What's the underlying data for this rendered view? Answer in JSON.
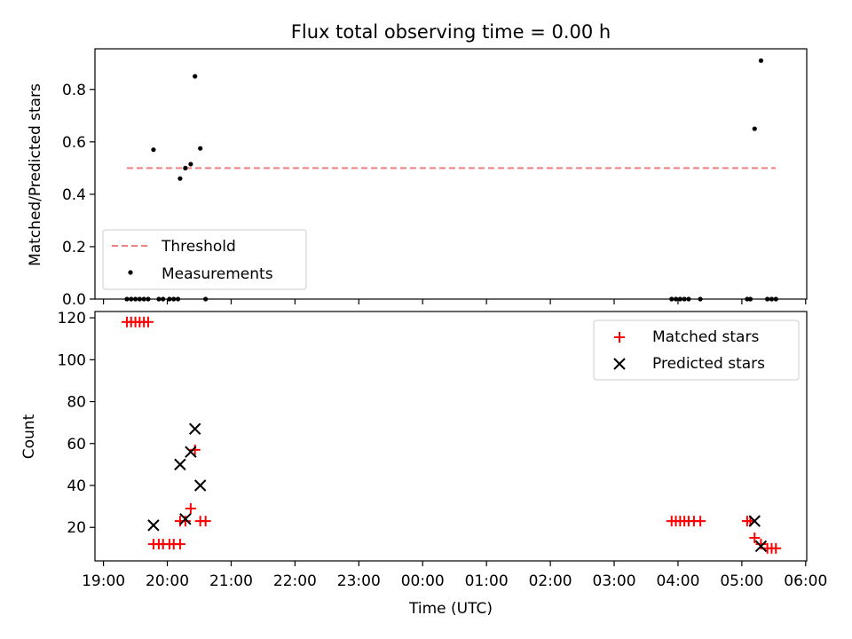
{
  "chart_data": [
    {
      "type": "scatter",
      "title": "Flux total observing time = 0.00 h",
      "ylabel": "Matched/Predicted stars",
      "xlim": [
        "18:52",
        "06:01"
      ],
      "ylim": [
        0,
        0.955
      ],
      "yticks": [
        "0.0",
        "0.2",
        "0.4",
        "0.6",
        "0.8"
      ],
      "legend_placement": "lower-left",
      "threshold": {
        "name": "Threshold",
        "color": "#f08080",
        "value": 0.5,
        "x_range": [
          "19:22",
          "05:32"
        ]
      },
      "series": [
        {
          "name": "Measurements",
          "color": "#000000",
          "points": [
            [
              "19:22",
              0.0
            ],
            [
              "19:26",
              0.0
            ],
            [
              "19:30",
              0.0
            ],
            [
              "19:34",
              0.0
            ],
            [
              "19:38",
              0.0
            ],
            [
              "19:42",
              0.0
            ],
            [
              "19:47",
              0.57
            ],
            [
              "19:52",
              0.0
            ],
            [
              "19:56",
              0.0
            ],
            [
              "20:02",
              0.0
            ],
            [
              "20:06",
              0.0
            ],
            [
              "20:10",
              0.0
            ],
            [
              "20:12",
              0.46
            ],
            [
              "20:17",
              0.5
            ],
            [
              "20:22",
              0.515
            ],
            [
              "20:26",
              0.85
            ],
            [
              "20:31",
              0.575
            ],
            [
              "20:36",
              0.0
            ],
            [
              "03:54",
              0.0
            ],
            [
              "03:58",
              0.0
            ],
            [
              "04:02",
              0.0
            ],
            [
              "04:06",
              0.0
            ],
            [
              "04:10",
              0.0
            ],
            [
              "04:21",
              0.0
            ],
            [
              "05:05",
              0.0
            ],
            [
              "05:08",
              0.0
            ],
            [
              "05:12",
              0.65
            ],
            [
              "05:18",
              0.91
            ],
            [
              "05:24",
              0.0
            ],
            [
              "05:28",
              0.0
            ],
            [
              "05:32",
              0.0
            ]
          ]
        }
      ]
    },
    {
      "type": "scatter",
      "xlabel": "Time (UTC)",
      "ylabel": "Count",
      "xlim": [
        "18:52",
        "06:01"
      ],
      "ylim": [
        4,
        123
      ],
      "xticks": [
        "19:00",
        "20:00",
        "21:00",
        "22:00",
        "23:00",
        "00:00",
        "01:00",
        "02:00",
        "03:00",
        "04:00",
        "05:00",
        "06:00"
      ],
      "yticks": [
        "20",
        "40",
        "60",
        "80",
        "100",
        "120"
      ],
      "legend_placement": "upper-right",
      "series": [
        {
          "name": "Matched stars",
          "color": "#ff0000",
          "marker": "plus",
          "points": [
            [
              "19:22",
              118
            ],
            [
              "19:26",
              118
            ],
            [
              "19:30",
              118
            ],
            [
              "19:34",
              118
            ],
            [
              "19:38",
              118
            ],
            [
              "19:42",
              118
            ],
            [
              "19:47",
              12
            ],
            [
              "19:52",
              12
            ],
            [
              "19:56",
              12
            ],
            [
              "20:02",
              12
            ],
            [
              "20:06",
              12
            ],
            [
              "20:12",
              12
            ],
            [
              "20:12",
              23
            ],
            [
              "20:17",
              23
            ],
            [
              "20:22",
              29
            ],
            [
              "20:26",
              57
            ],
            [
              "20:31",
              23
            ],
            [
              "20:36",
              23
            ],
            [
              "03:54",
              23
            ],
            [
              "03:58",
              23
            ],
            [
              "04:02",
              23
            ],
            [
              "04:06",
              23
            ],
            [
              "04:10",
              23
            ],
            [
              "04:15",
              23
            ],
            [
              "04:21",
              23
            ],
            [
              "05:05",
              23
            ],
            [
              "05:08",
              23
            ],
            [
              "05:12",
              15
            ],
            [
              "05:18",
              12
            ],
            [
              "05:24",
              10
            ],
            [
              "05:28",
              10
            ],
            [
              "05:32",
              10
            ]
          ]
        },
        {
          "name": "Predicted stars",
          "color": "#000000",
          "marker": "x",
          "points": [
            [
              "19:47",
              21
            ],
            [
              "20:12",
              50
            ],
            [
              "20:17",
              24
            ],
            [
              "20:22",
              56
            ],
            [
              "20:26",
              67
            ],
            [
              "20:31",
              40
            ],
            [
              "05:12",
              23
            ],
            [
              "05:18",
              11
            ]
          ]
        }
      ]
    }
  ]
}
